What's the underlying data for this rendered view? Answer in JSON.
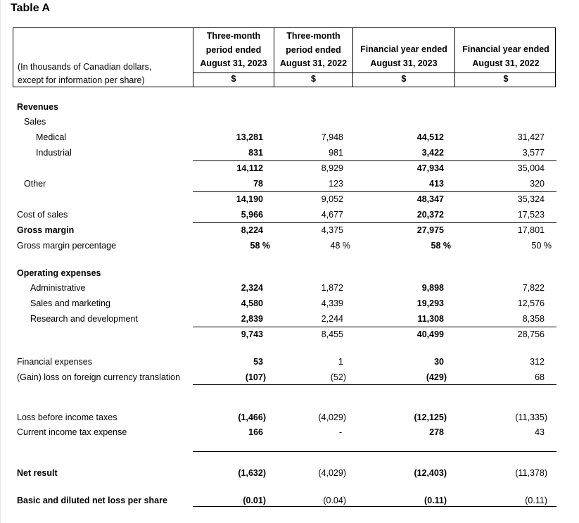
{
  "title": "Table A",
  "header": {
    "units_label": [
      "(In thousands of Canadian dollars,",
      "except for information per share)"
    ],
    "columns": [
      {
        "lines": [
          "Three-month",
          "period ended",
          "August 31, 2023"
        ],
        "currency": "$"
      },
      {
        "lines": [
          "Three-month",
          "period ended",
          "August 31, 2022"
        ],
        "currency": "$"
      },
      {
        "lines": [
          "Financial year ended",
          "August 31, 2023"
        ],
        "currency": "$"
      },
      {
        "lines": [
          "Financial year ended",
          "August 31, 2022"
        ],
        "currency": "$"
      }
    ]
  },
  "rows": [
    {
      "label": "Revenues",
      "bold": true,
      "indent": 0,
      "values": []
    },
    {
      "label": "Sales",
      "indent": 1,
      "values": []
    },
    {
      "label": "Medical",
      "indent": 3,
      "values": [
        "13,281",
        "7,948",
        "44,512",
        "31,427"
      ]
    },
    {
      "label": "Industrial",
      "indent": 3,
      "values": [
        "831",
        "981",
        "3,422",
        "3,577"
      ]
    },
    {
      "label": "",
      "indent": 0,
      "values": [
        "14,112",
        "8,929",
        "47,934",
        "35,004"
      ]
    },
    {
      "label": "Other",
      "indent": 1,
      "values": [
        "78",
        "123",
        "413",
        "320"
      ]
    },
    {
      "label": "",
      "indent": 0,
      "values": [
        "14,190",
        "9,052",
        "48,347",
        "35,324"
      ]
    },
    {
      "label": "Cost of sales",
      "indent": 0,
      "values": [
        "5,966",
        "4,677",
        "20,372",
        "17,523"
      ]
    },
    {
      "label": "Gross margin",
      "bold": true,
      "indent": 0,
      "values": [
        "8,224",
        "4,375",
        "27,975",
        "17,801"
      ]
    },
    {
      "label": "Gross margin percentage",
      "indent": 0,
      "values": [
        "58 %",
        "48 %",
        "58 %",
        "50 %"
      ]
    },
    {
      "label": "Operating expenses",
      "bold": true,
      "indent": 0,
      "values": []
    },
    {
      "label": "Administrative",
      "indent": 2,
      "values": [
        "2,324",
        "1,872",
        "9,898",
        "7,822"
      ]
    },
    {
      "label": "Sales and marketing",
      "indent": 2,
      "values": [
        "4,580",
        "4,339",
        "19,293",
        "12,576"
      ]
    },
    {
      "label": "Research and development",
      "indent": 2,
      "values": [
        "2,839",
        "2,244",
        "11,308",
        "8,358"
      ]
    },
    {
      "label": "",
      "indent": 0,
      "values": [
        "9,743",
        "8,455",
        "40,499",
        "28,756"
      ]
    },
    {
      "label": "Financial expenses",
      "indent": 0,
      "values": [
        "53",
        "1",
        "30",
        "312"
      ]
    },
    {
      "label": "(Gain) loss on foreign currency translation",
      "indent": 0,
      "values": [
        "(107)",
        "(52)",
        "(429)",
        "68"
      ]
    },
    {
      "label": "Loss before income taxes",
      "indent": 0,
      "values": [
        "(1,466)",
        "(4,029)",
        "(12,125)",
        "(11,335)"
      ]
    },
    {
      "label": "Current income tax expense",
      "indent": 0,
      "values": [
        "166",
        "-",
        "278",
        "43"
      ]
    },
    {
      "label": "Net result",
      "bold": true,
      "indent": 0,
      "values": [
        "(1,632)",
        "(4,029)",
        "(12,403)",
        "(11,378)"
      ]
    },
    {
      "label": "Basic and diluted net loss per share",
      "bold": true,
      "indent": 0,
      "values": [
        "(0.01)",
        "(0.04)",
        "(0.11)",
        "(0.11)"
      ]
    }
  ]
}
